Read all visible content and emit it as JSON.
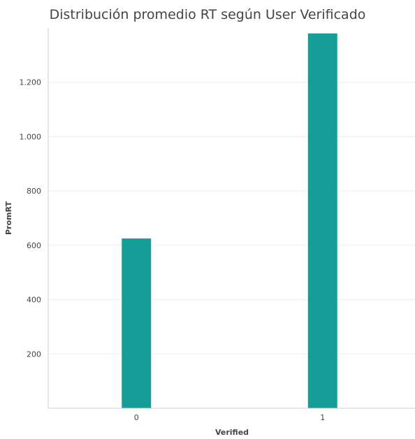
{
  "chart_data": {
    "type": "bar",
    "title": "Distribución promedio RT según User Verificado",
    "xlabel": "Verified",
    "ylabel": "PromRT",
    "categories": [
      "0",
      "1"
    ],
    "values": [
      625,
      1380
    ],
    "ylim": [
      0,
      1400
    ],
    "yticks": [
      200,
      400,
      600,
      800,
      1000,
      1200
    ],
    "ytick_labels": [
      "200",
      "400",
      "600",
      "800",
      "1.000",
      "1.200"
    ],
    "bar_color": "#159e97",
    "grid": true,
    "legend": "none"
  }
}
